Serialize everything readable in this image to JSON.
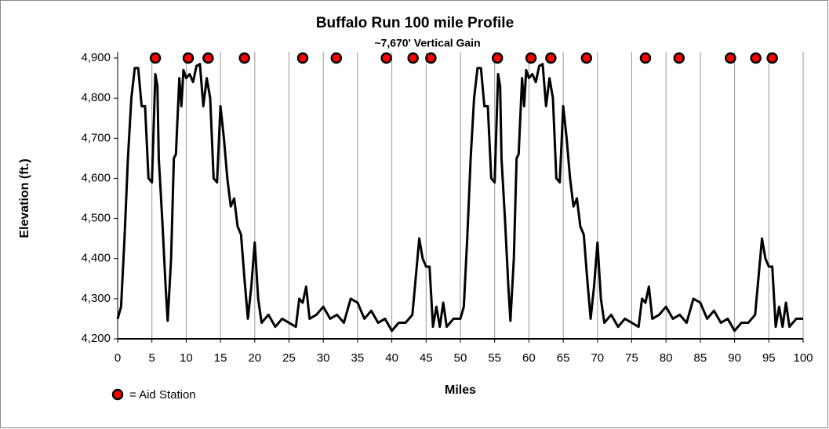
{
  "chart_data": {
    "type": "line",
    "title": "Buffalo Run 100 mile Profile",
    "subtitle": "~7,670' Vertical Gain",
    "x_label": "Miles",
    "y_label": "Elevation (ft.)",
    "xlim": [
      0,
      100
    ],
    "xticks": [
      0,
      5,
      10,
      15,
      20,
      25,
      30,
      35,
      40,
      45,
      50,
      55,
      60,
      65,
      70,
      75,
      80,
      85,
      90,
      95,
      100
    ],
    "ylim": [
      4200,
      4900
    ],
    "yticks": [
      {
        "value": 4200,
        "label": "4,200"
      },
      {
        "value": 4300,
        "label": "4,300"
      },
      {
        "value": 4400,
        "label": "4,400"
      },
      {
        "value": 4500,
        "label": "4,500"
      },
      {
        "value": 4600,
        "label": "4,600"
      },
      {
        "value": 4700,
        "label": "4,700"
      },
      {
        "value": 4800,
        "label": "4,800"
      },
      {
        "value": 4900,
        "label": "4,900"
      }
    ],
    "x_grid": true,
    "series": [
      {
        "color": "#000000",
        "type": "line",
        "x": [
          0,
          0.5,
          1,
          1.5,
          2,
          2.5,
          3,
          3.5,
          4,
          4.5,
          5,
          5.5,
          5.8,
          6,
          6.5,
          7,
          7.3,
          7.8,
          8.2,
          8.5,
          9,
          9.3,
          9.6,
          10,
          10.5,
          11,
          11.5,
          12,
          12.5,
          13,
          13.5,
          14,
          14.5,
          15,
          15.5,
          16,
          16.5,
          17,
          17.5,
          18,
          18.5,
          19,
          19.5,
          20,
          20.5,
          21,
          22,
          23,
          24,
          25,
          26,
          26.5,
          27,
          27.5,
          28,
          29,
          30,
          31,
          32,
          33,
          34,
          35,
          36,
          37,
          38,
          39,
          40,
          41,
          42,
          43,
          44,
          44.5,
          45,
          45.5,
          46,
          46.5,
          47,
          47.5,
          48,
          49,
          50,
          50.5,
          51,
          51.5,
          52,
          52.5,
          53,
          53.5,
          54,
          54.5,
          55,
          55.5,
          55.8,
          56,
          56.5,
          57,
          57.3,
          57.8,
          58.2,
          58.5,
          59,
          59.3,
          59.6,
          60,
          60.5,
          61,
          61.5,
          62,
          62.5,
          63,
          63.5,
          64,
          64.5,
          65,
          65.5,
          66,
          66.5,
          67,
          67.5,
          68,
          68.5,
          69,
          69.5,
          70,
          70.5,
          71,
          72,
          73,
          74,
          75,
          76,
          76.5,
          77,
          77.5,
          78,
          79,
          80,
          81,
          82,
          83,
          84,
          85,
          86,
          87,
          88,
          89,
          90,
          91,
          92,
          93,
          94,
          94.5,
          95,
          95.5,
          96,
          96.5,
          97,
          97.5,
          98,
          99,
          100
        ],
        "values": [
          4250,
          4280,
          4450,
          4650,
          4800,
          4875,
          4875,
          4780,
          4780,
          4600,
          4590,
          4860,
          4830,
          4650,
          4500,
          4330,
          4245,
          4400,
          4650,
          4660,
          4850,
          4780,
          4870,
          4850,
          4860,
          4840,
          4880,
          4885,
          4780,
          4850,
          4800,
          4600,
          4590,
          4780,
          4700,
          4600,
          4530,
          4550,
          4480,
          4460,
          4350,
          4250,
          4330,
          4440,
          4300,
          4240,
          4260,
          4230,
          4250,
          4240,
          4230,
          4300,
          4290,
          4330,
          4250,
          4260,
          4280,
          4250,
          4260,
          4240,
          4300,
          4290,
          4250,
          4270,
          4240,
          4250,
          4220,
          4240,
          4240,
          4260,
          4450,
          4400,
          4380,
          4380,
          4230,
          4280,
          4230,
          4290,
          4230,
          4250,
          4250,
          4280,
          4450,
          4650,
          4800,
          4875,
          4875,
          4780,
          4780,
          4600,
          4590,
          4860,
          4830,
          4650,
          4500,
          4330,
          4245,
          4400,
          4650,
          4660,
          4850,
          4780,
          4870,
          4850,
          4860,
          4840,
          4880,
          4885,
          4780,
          4850,
          4800,
          4600,
          4590,
          4780,
          4700,
          4600,
          4530,
          4550,
          4480,
          4460,
          4350,
          4250,
          4330,
          4440,
          4300,
          4240,
          4260,
          4230,
          4250,
          4240,
          4230,
          4300,
          4290,
          4330,
          4250,
          4260,
          4280,
          4250,
          4260,
          4240,
          4300,
          4290,
          4250,
          4270,
          4240,
          4250,
          4220,
          4240,
          4240,
          4260,
          4450,
          4400,
          4380,
          4380,
          4230,
          4280,
          4230,
          4290,
          4230,
          4250,
          4250
        ]
      },
      {
        "name": "= Aid Station",
        "color": "#ff0000",
        "type": "scatter",
        "x": [
          5.5,
          10.3,
          13.2,
          18.5,
          27.0,
          31.9,
          39.2,
          43.1,
          45.7,
          55.4,
          60.3,
          63.2,
          68.4,
          77.0,
          81.9,
          89.4,
          93.1,
          95.5
        ],
        "values": [
          4900,
          4900,
          4900,
          4900,
          4900,
          4900,
          4900,
          4900,
          4900,
          4900,
          4900,
          4900,
          4900,
          4900,
          4900,
          4900,
          4900,
          4900
        ]
      }
    ]
  }
}
